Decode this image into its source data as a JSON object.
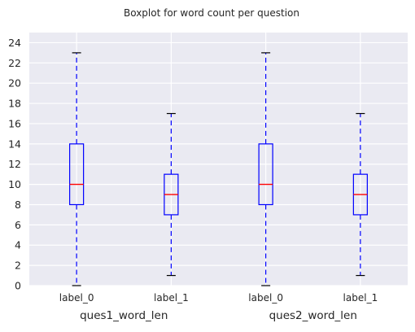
{
  "chart_data": {
    "type": "boxplot",
    "title": "Boxplot for word count per question",
    "ylim": [
      0,
      25
    ],
    "yticks": [
      0,
      2,
      4,
      6,
      8,
      10,
      12,
      14,
      16,
      18,
      20,
      22,
      24
    ],
    "grid": true,
    "group_labels": [
      "ques1_word_len",
      "ques2_word_len"
    ],
    "boxes": [
      {
        "group": "ques1_word_len",
        "label": "label_0",
        "whisker_low": 0,
        "q1": 8,
        "median": 10,
        "q3": 14,
        "whisker_high": 23
      },
      {
        "group": "ques1_word_len",
        "label": "label_1",
        "whisker_low": 1,
        "q1": 7,
        "median": 9,
        "q3": 11,
        "whisker_high": 17
      },
      {
        "group": "ques2_word_len",
        "label": "label_0",
        "whisker_low": 0,
        "q1": 8,
        "median": 10,
        "q3": 14,
        "whisker_high": 23
      },
      {
        "group": "ques2_word_len",
        "label": "label_1",
        "whisker_low": 1,
        "q1": 7,
        "median": 9,
        "q3": 11,
        "whisker_high": 17
      }
    ],
    "colors": {
      "background": "#EAEAF2",
      "grid": "#FFFFFF",
      "box": "#0000FF",
      "median": "#FF0000",
      "whisker": "#0000FF",
      "cap": "#000000"
    }
  }
}
